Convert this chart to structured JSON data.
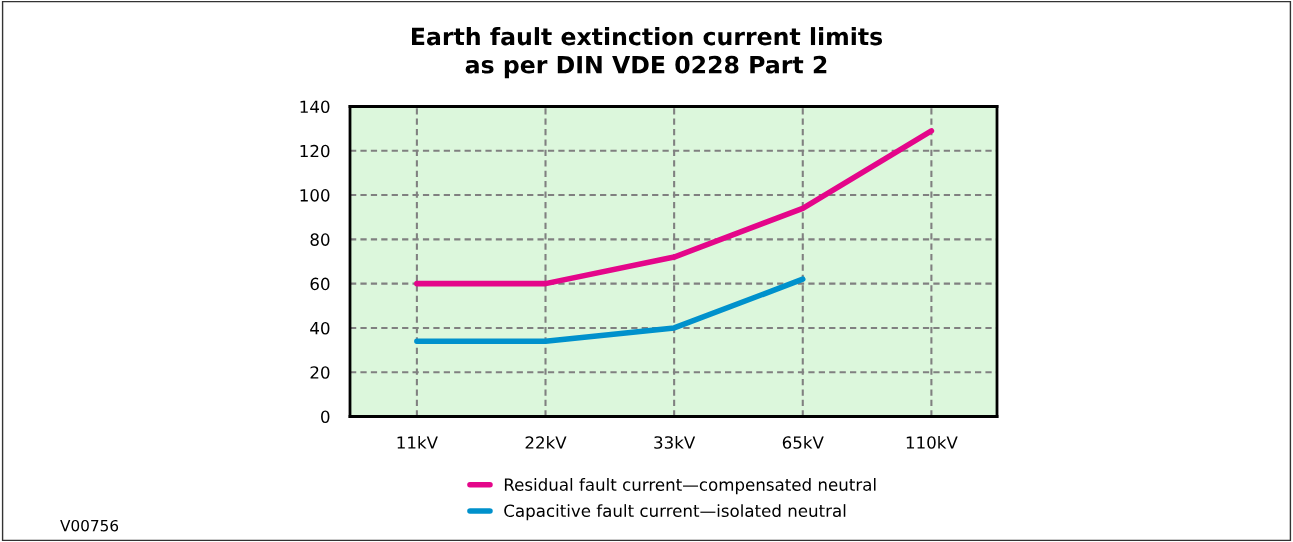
{
  "chart_data": {
    "type": "line",
    "title": "Earth fault extinction current limits\nas per DIN VDE 0228 Part 2",
    "categories": [
      "11kV",
      "22kV",
      "33kV",
      "65kV",
      "110kV"
    ],
    "series": [
      {
        "name": "Residual fault current—compensated neutral",
        "color": "#e4068a",
        "values": [
          60,
          60,
          72,
          94,
          129
        ]
      },
      {
        "name": "Capacitive fault current—isolated neutral",
        "color": "#0091cc",
        "values": [
          34,
          34,
          40,
          62,
          null
        ]
      }
    ],
    "ylim": [
      0,
      140
    ],
    "yticks": [
      0,
      20,
      40,
      60,
      80,
      100,
      120,
      140
    ],
    "grid": true,
    "legend": "bottom",
    "marker": "none",
    "line_style": "solid",
    "annotations": [
      "V00756"
    ]
  }
}
